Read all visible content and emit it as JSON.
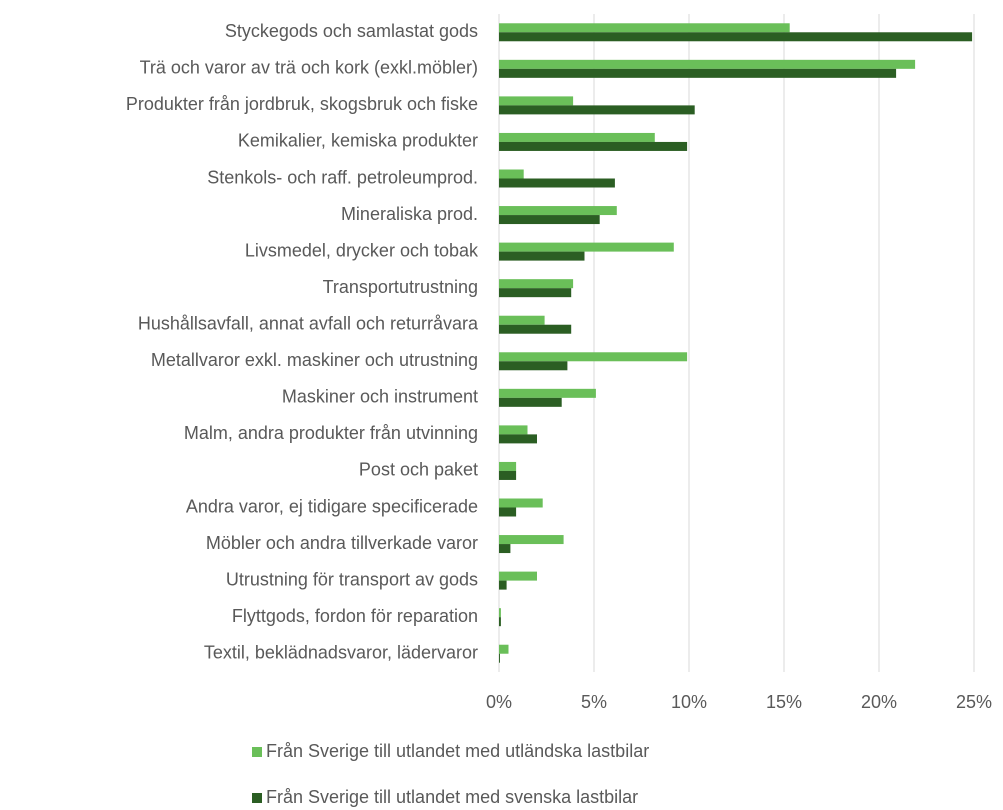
{
  "chart_data": {
    "type": "hbar",
    "categories": [
      "Styckegods och samlastat gods",
      "Trä och varor av trä och kork (exkl.möbler)",
      "Produkter från jordbruk, skogsbruk och fiske",
      "Kemikalier, kemiska produkter",
      "Stenkols- och raff. petroleumprod.",
      "Mineraliska prod.",
      "Livsmedel, drycker och tobak",
      "Transportutrustning",
      "Hushållsavfall, annat avfall och returråvara",
      "Metallvaror exkl. maskiner och utrustning",
      "Maskiner och instrument",
      "Malm, andra produkter från utvinning",
      "Post och paket",
      "Andra varor, ej tidigare specificerade",
      "Möbler och andra tillverkade varor",
      "Utrustning för transport av gods",
      "Flyttgods, fordon för reparation",
      "Textil, beklädnadsvaror, lädervaror"
    ],
    "series": [
      {
        "name": "Från Sverige till utlandet med utländska lastbilar",
        "color": "#6abf59",
        "values": [
          15.3,
          21.9,
          3.9,
          8.2,
          1.3,
          6.2,
          9.2,
          3.9,
          2.4,
          9.9,
          5.1,
          1.5,
          0.9,
          2.3,
          3.4,
          2.0,
          0.1,
          0.5
        ]
      },
      {
        "name": "Från Sverige till utlandet med svenska lastbilar",
        "color": "#2b5e23",
        "values": [
          24.9,
          20.9,
          10.3,
          9.9,
          6.1,
          5.3,
          4.5,
          3.8,
          3.8,
          3.6,
          3.3,
          2.0,
          0.9,
          0.9,
          0.6,
          0.4,
          0.1,
          0.05
        ]
      }
    ],
    "xlim": [
      0,
      25
    ],
    "xticks": [
      {
        "value": 0,
        "label": "0%"
      },
      {
        "value": 5,
        "label": "5%"
      },
      {
        "value": 10,
        "label": "10%"
      },
      {
        "value": 15,
        "label": "15%"
      },
      {
        "value": 20,
        "label": "20%"
      },
      {
        "value": 25,
        "label": "25%"
      }
    ],
    "grid": true
  }
}
